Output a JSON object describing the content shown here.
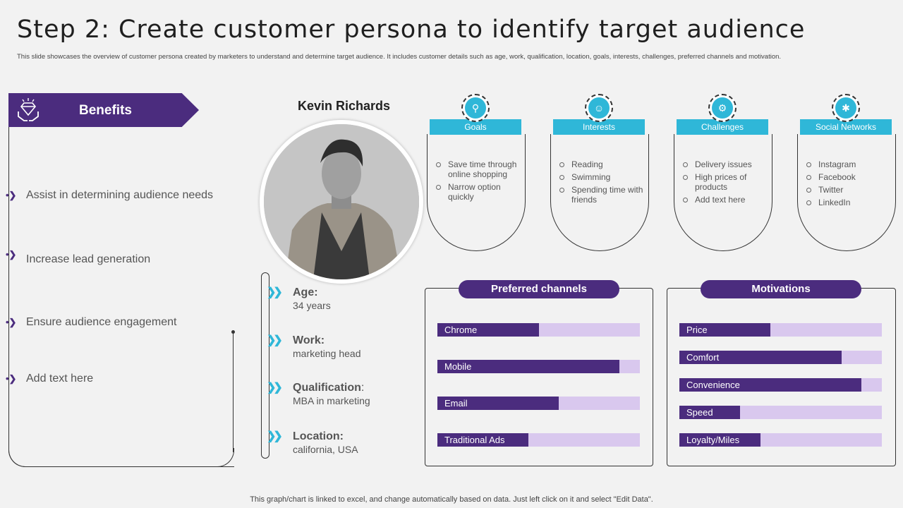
{
  "title": "Step 2: Create customer persona to identify target audience",
  "subtitle": "This slide showcases the overview of customer persona created by marketers to understand and determine target audience. It includes customer details such as age, work, qualification, location, goals, interests, challenges, preferred channels and motivation.",
  "benefits": {
    "heading": "Benefits",
    "items": [
      "Assist in determining audience needs",
      "Increase  lead generation",
      "Ensure audience engagement",
      "Add text here"
    ]
  },
  "persona": {
    "name": "Kevin Richards",
    "details": [
      {
        "key": "Age:",
        "colon": "",
        "value": "34 years"
      },
      {
        "key": "Work:",
        "colon": "",
        "value": "marketing head"
      },
      {
        "key": "Qualification",
        "colon": ":",
        "value": "MBA in marketing"
      },
      {
        "key": "Location:",
        "colon": "",
        "value": "california, USA"
      }
    ]
  },
  "cards": [
    {
      "label": "Goals",
      "icon": "goals-icon",
      "items": [
        "Save time through online shopping",
        "Narrow option quickly"
      ]
    },
    {
      "label": "Interests",
      "icon": "interests-icon",
      "items": [
        "Reading",
        "Swimming",
        "Spending time with friends"
      ]
    },
    {
      "label": "Challenges",
      "icon": "challenges-icon",
      "items": [
        "Delivery issues",
        "High prices of products",
        "Add text here"
      ]
    },
    {
      "label": "Social Networks",
      "icon": "social-networks-icon",
      "items": [
        "Instagram",
        "Facebook",
        "Twitter",
        "LinkedIn"
      ]
    }
  ],
  "chart_data": [
    {
      "type": "bar",
      "title": "Preferred channels",
      "categories": [
        "Chrome",
        "Mobile",
        "Email",
        "Traditional  Ads"
      ],
      "values": [
        50,
        90,
        60,
        45
      ],
      "ylim": [
        0,
        100
      ]
    },
    {
      "type": "bar",
      "title": "Motivations",
      "categories": [
        "Price",
        "Comfort",
        "Convenience",
        "Speed",
        "Loyalty/Miles"
      ],
      "values": [
        45,
        80,
        90,
        30,
        40
      ],
      "ylim": [
        0,
        100
      ]
    }
  ],
  "colors": {
    "purple": "#4b2c7e",
    "light_purple": "#d9c8ee",
    "cyan": "#2fb7d8"
  },
  "footer": "This graph/chart is linked to excel, and change automatically based on data. Just left click on it and select \"Edit Data\"."
}
